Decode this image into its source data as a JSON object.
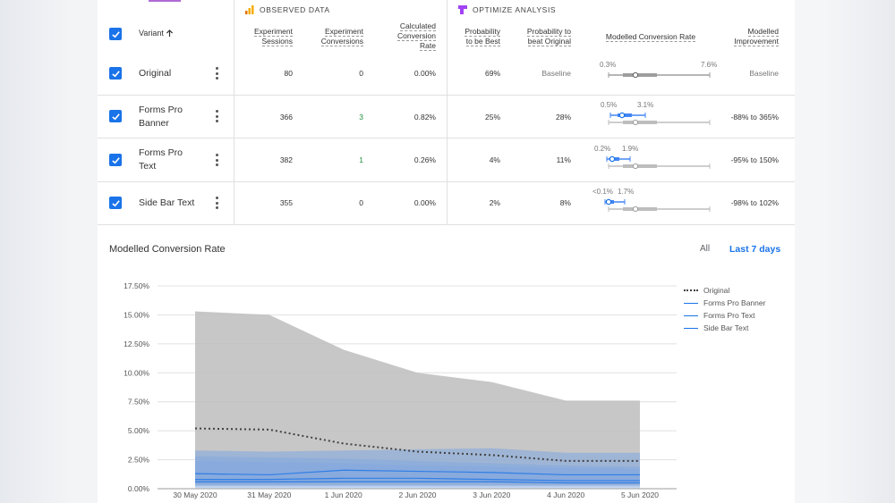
{
  "sections": {
    "observed": "OBSERVED DATA",
    "optimize": "OPTIMIZE ANALYSIS"
  },
  "columns": {
    "variant": "Variant",
    "sort_icon": "arrow-up-icon",
    "sessions": [
      "Experiment",
      "Sessions"
    ],
    "conversions": [
      "Experiment",
      "Conversions"
    ],
    "calc_rate": [
      "Calculated",
      "Conversion",
      "Rate"
    ],
    "prob_best": [
      "Probability",
      "to be Best"
    ],
    "prob_beat": [
      "Probability to",
      "beat Original"
    ],
    "modelled_rate": "Modelled Conversion Rate",
    "modelled_improvement": [
      "Modelled",
      "Improvement"
    ]
  },
  "rows": [
    {
      "name": [
        "Original"
      ],
      "sessions": "80",
      "conversions": "0",
      "rate": "0.00%",
      "prob_best": "69%",
      "prob_beat": "Baseline",
      "lo": "0.3%",
      "hi": "7.6%",
      "improvement": "Baseline"
    },
    {
      "name": [
        "Forms Pro",
        "Banner"
      ],
      "sessions": "366",
      "conversions": "3",
      "rate": "0.82%",
      "prob_best": "25%",
      "prob_beat": "28%",
      "lo": "0.5%",
      "hi": "3.1%",
      "improvement": "-88% to 365%"
    },
    {
      "name": [
        "Forms Pro",
        "Text"
      ],
      "sessions": "382",
      "conversions": "1",
      "rate": "0.26%",
      "prob_best": "4%",
      "prob_beat": "11%",
      "lo": "0.2%",
      "hi": "1.9%",
      "improvement": "-95% to 150%"
    },
    {
      "name": [
        "Side Bar Text"
      ],
      "sessions": "355",
      "conversions": "0",
      "rate": "0.00%",
      "prob_best": "2%",
      "prob_beat": "8%",
      "lo": "<0.1%",
      "hi": "1.7%",
      "improvement": "-98% to 102%"
    }
  ],
  "chart_section": {
    "title": "Modelled Conversion Rate",
    "range_all": "All",
    "range_last7": "Last 7 days"
  },
  "colors": {
    "accent": "#1a73e8",
    "grey_band": "#bdbdbd",
    "blue_band": "#7ea6e0"
  },
  "chart_data": {
    "type": "area",
    "title": "",
    "xlabel": "",
    "ylabel": "",
    "x": [
      "30 May 2020",
      "31 May 2020",
      "1 Jun 2020",
      "2 Jun 2020",
      "3 Jun 2020",
      "4 Jun 2020",
      "5 Jun 2020"
    ],
    "y_ticks": [
      "0.00%",
      "2.50%",
      "5.00%",
      "7.50%",
      "10.00%",
      "12.50%",
      "15.00%",
      "17.50%"
    ],
    "ylim": [
      0,
      17.5
    ],
    "series": [
      {
        "name": "Original",
        "style": "dotted",
        "values": [
          5.2,
          5.1,
          3.9,
          3.2,
          2.9,
          2.4,
          2.4
        ],
        "band_upper": [
          15.3,
          15.0,
          12.0,
          10.0,
          9.2,
          7.6,
          7.6
        ],
        "band_lower": [
          0.3,
          0.3,
          0.3,
          0.3,
          0.3,
          0.3,
          0.3
        ]
      },
      {
        "name": "Forms Pro Banner",
        "style": "solid",
        "values": [
          1.3,
          1.2,
          1.6,
          1.5,
          1.4,
          1.2,
          1.2
        ],
        "band_upper": [
          3.3,
          3.2,
          3.3,
          3.4,
          3.5,
          3.1,
          3.1
        ],
        "band_lower": [
          0.4,
          0.4,
          0.5,
          0.5,
          0.5,
          0.5,
          0.5
        ]
      },
      {
        "name": "Forms Pro Text",
        "style": "solid",
        "values": [
          0.8,
          0.8,
          0.9,
          0.9,
          0.8,
          0.7,
          0.7
        ],
        "band_upper": [
          2.8,
          2.7,
          2.6,
          2.4,
          2.2,
          2.0,
          1.9
        ],
        "band_lower": [
          0.2,
          0.2,
          0.2,
          0.2,
          0.2,
          0.2,
          0.2
        ]
      },
      {
        "name": "Side Bar Text",
        "style": "solid",
        "values": [
          0.6,
          0.6,
          0.6,
          0.6,
          0.6,
          0.5,
          0.5
        ],
        "band_upper": [
          2.4,
          2.3,
          2.2,
          2.0,
          1.9,
          1.8,
          1.7
        ],
        "band_lower": [
          0.05,
          0.05,
          0.05,
          0.05,
          0.05,
          0.05,
          0.05
        ]
      }
    ],
    "grid": true,
    "legend_position": "right"
  }
}
